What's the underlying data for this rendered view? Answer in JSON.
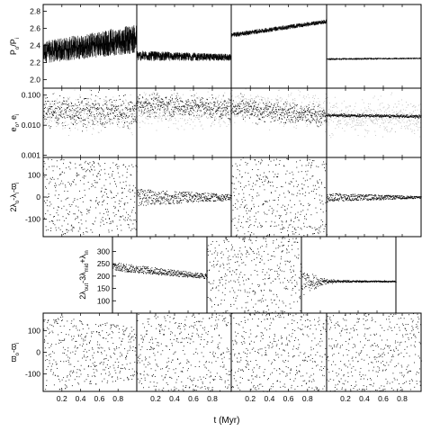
{
  "figure": {
    "xlabel": "t (Myr)"
  },
  "chart_data": {
    "type": "scatter",
    "grid": false,
    "x_ticks": [
      "0.2",
      "0.4",
      "0.6",
      "0.8"
    ],
    "xlim": [
      0,
      1
    ],
    "rows": [
      {
        "ylabel": "P_o/P_i",
        "y_ticks": [
          "2.0",
          "2.2",
          "2.4",
          "2.6",
          "2.8"
        ],
        "ylim": [
          1.9,
          2.88
        ],
        "log": false,
        "panels": [
          {
            "style": "band",
            "center": [
              2.32,
              2.48
            ],
            "spread": [
              0.26,
              0.34
            ],
            "color": "#000000"
          },
          {
            "style": "band",
            "center": [
              2.28,
              2.26
            ],
            "spread": [
              0.12,
              0.08
            ],
            "color": "#000000"
          },
          {
            "style": "band",
            "center": [
              2.52,
              2.68
            ],
            "spread": [
              0.06,
              0.05
            ],
            "color": "#000000"
          },
          {
            "style": "band",
            "center": [
              2.24,
              2.25
            ],
            "spread": [
              0.025,
              0.02
            ],
            "color": "#000000"
          }
        ]
      },
      {
        "ylabel": "e_o, e_i",
        "y_ticks": [
          "0.001",
          "0.010",
          "0.100"
        ],
        "ylim": [
          0.00085,
          0.17
        ],
        "log": true,
        "panels": [
          {
            "series": [
              {
                "name": "e_o",
                "center": [
                  0.03,
                  0.03
                ],
                "spread": 0.5,
                "color": "#000000"
              },
              {
                "name": "e_i",
                "center": [
                  0.025,
                  0.025
                ],
                "spread": 0.55,
                "color": "#bbbbbb"
              }
            ]
          },
          {
            "series": [
              {
                "name": "e_o",
                "center": [
                  0.055,
                  0.035
                ],
                "spread": 0.35,
                "color": "#000000"
              },
              {
                "name": "e_i",
                "center": [
                  0.03,
                  0.03
                ],
                "spread": 0.55,
                "color": "#bbbbbb"
              }
            ]
          },
          {
            "series": [
              {
                "name": "e_o",
                "center": [
                  0.035,
                  0.02
                ],
                "spread": 0.35,
                "color": "#000000"
              },
              {
                "name": "e_i",
                "center": [
                  0.05,
                  0.03
                ],
                "spread": 0.55,
                "color": "#bbbbbb"
              }
            ]
          },
          {
            "series": [
              {
                "name": "e_o",
                "center": [
                  0.022,
                  0.02
                ],
                "spread": 0.05,
                "color": "#000000"
              },
              {
                "name": "e_i",
                "center": [
                  0.02,
                  0.02
                ],
                "spread": 0.55,
                "color": "#bbbbbb"
              }
            ]
          }
        ]
      },
      {
        "ylabel": "2λ_o-λ_i-ϖ_i",
        "y_ticks": [
          "-100",
          "0",
          "100"
        ],
        "ylim": [
          -180,
          180
        ],
        "log": false,
        "panels": [
          {
            "style": "cloud",
            "center": [
              0,
              0
            ],
            "spread": [
              180,
              150
            ],
            "color": "#000000"
          },
          {
            "style": "band",
            "center": [
              0,
              0
            ],
            "spread": [
              80,
              25
            ],
            "color": "#000000"
          },
          {
            "style": "cloud",
            "center": [
              0,
              0
            ],
            "spread": [
              180,
              180
            ],
            "color": "#000000"
          },
          {
            "style": "band",
            "center": [
              0,
              0
            ],
            "spread": [
              40,
              8
            ],
            "color": "#000000"
          }
        ]
      },
      {
        "ylabel": "2λ_out-3λ_mid+λ_in",
        "y_ticks": [
          "100",
          "150",
          "200",
          "250",
          "300"
        ],
        "ylim": [
          50,
          360
        ],
        "log": false,
        "panels": [
          {
            "style": "band",
            "center": [
              240,
              200
            ],
            "spread": [
              35,
              20
            ],
            "color": "#000000"
          },
          {
            "style": "cloud",
            "center": [
              200,
              200
            ],
            "spread": [
              160,
              160
            ],
            "color": "#000000"
          },
          {
            "style": "converge",
            "center": [
              180,
              180
            ],
            "spread": [
              160,
              6
            ],
            "color": "#000000"
          }
        ]
      },
      {
        "ylabel": "ϖ_o-ϖ_i",
        "y_ticks": [
          "-100",
          "0",
          "100"
        ],
        "ylim": [
          -180,
          180
        ],
        "log": false,
        "panels": [
          {
            "style": "cloud",
            "center": [
              0,
              0
            ],
            "spread": [
              180,
              120
            ],
            "color": "#000000"
          },
          {
            "style": "cloud",
            "center": [
              0,
              0
            ],
            "spread": [
              180,
              180
            ],
            "color": "#000000"
          },
          {
            "style": "cloud",
            "center": [
              0,
              0
            ],
            "spread": [
              180,
              180
            ],
            "color": "#000000"
          },
          {
            "style": "cloud",
            "center": [
              0,
              0
            ],
            "spread": [
              180,
              180
            ],
            "color": "#000000"
          }
        ]
      }
    ]
  }
}
